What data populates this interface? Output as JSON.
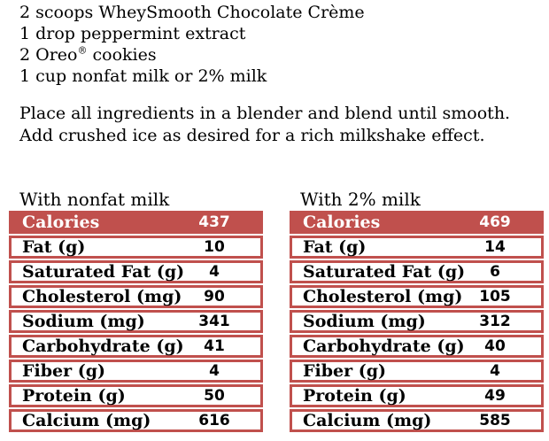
{
  "recipe": {
    "ingredients": [
      {
        "text": "2 scoops WheySmooth Chocolate Crème"
      },
      {
        "text": "1 drop peppermint extract"
      },
      {
        "pre": "2 Oreo",
        "sup": "®",
        "post": " cookies"
      },
      {
        "text": "1 cup nonfat milk or 2% milk"
      }
    ],
    "instructions": [
      "Place all ingredients in a blender and blend until smooth.",
      "Add crushed ice as desired for a rich milkshake effect."
    ]
  },
  "nutrition_tables": [
    {
      "caption": "With nonfat milk",
      "header_row": {
        "label": "Calories",
        "value": "437"
      },
      "rows": [
        {
          "label": "Fat (g)",
          "value": "10"
        },
        {
          "label": "Saturated Fat (g)",
          "value": "4"
        },
        {
          "label": "Cholesterol (mg)",
          "value": "90"
        },
        {
          "label": "Sodium (mg)",
          "value": "341"
        },
        {
          "label": "Carbohydrate (g)",
          "value": "41"
        },
        {
          "label": "Fiber (g)",
          "value": "4"
        },
        {
          "label": "Protein (g)",
          "value": "50"
        },
        {
          "label": "Calcium (mg)",
          "value": "616"
        }
      ]
    },
    {
      "caption": "With 2% milk",
      "header_row": {
        "label": "Calories",
        "value": "469"
      },
      "rows": [
        {
          "label": "Fat (g)",
          "value": "14"
        },
        {
          "label": "Saturated Fat (g)",
          "value": "6"
        },
        {
          "label": "Cholesterol (mg)",
          "value": "105"
        },
        {
          "label": "Sodium (mg)",
          "value": "312"
        },
        {
          "label": "Carbohydrate (g)",
          "value": "40"
        },
        {
          "label": "Fiber (g)",
          "value": "4"
        },
        {
          "label": "Protein (g)",
          "value": "49"
        },
        {
          "label": "Calcium (mg)",
          "value": "585"
        }
      ]
    }
  ],
  "colors": {
    "table_accent": "#c0504d",
    "header_text": "#ffffff",
    "body_text": "#000000",
    "background": "#ffffff"
  }
}
